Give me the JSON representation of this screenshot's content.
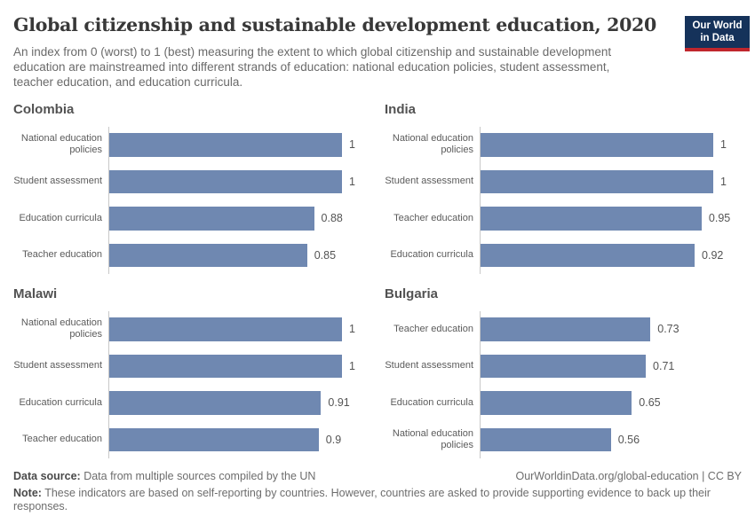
{
  "header": {
    "title": "Global citizenship and sustainable development education, 2020",
    "subtitle": "An index from 0 (worst) to 1 (best) measuring the extent to which global citizenship and sustainable development education are mainstreamed into different strands of education: national education policies, student assessment, teacher education, and education curricula.",
    "logo": {
      "line1": "Our World",
      "line2": "in Data"
    }
  },
  "chart_data": {
    "type": "bar",
    "orientation": "horizontal",
    "xlim": [
      0,
      1
    ],
    "grid": false,
    "value_labels_shown": true,
    "panels": [
      {
        "country": "Colombia",
        "categories": [
          "National education policies",
          "Student assessment",
          "Education curricula",
          "Teacher education"
        ],
        "values": [
          1,
          1,
          0.88,
          0.85
        ],
        "value_labels": [
          "1",
          "1",
          "0.88",
          "0.85"
        ]
      },
      {
        "country": "India",
        "categories": [
          "National education policies",
          "Student assessment",
          "Teacher education",
          "Education curricula"
        ],
        "values": [
          1,
          1,
          0.95,
          0.92
        ],
        "value_labels": [
          "1",
          "1",
          "0.95",
          "0.92"
        ]
      },
      {
        "country": "Malawi",
        "categories": [
          "National education policies",
          "Student assessment",
          "Education curricula",
          "Teacher education"
        ],
        "values": [
          1,
          1,
          0.91,
          0.9
        ],
        "value_labels": [
          "1",
          "1",
          "0.91",
          "0.9"
        ]
      },
      {
        "country": "Bulgaria",
        "categories": [
          "Teacher education",
          "Student assessment",
          "Education curricula",
          "National education policies"
        ],
        "values": [
          0.73,
          0.71,
          0.65,
          0.56
        ],
        "value_labels": [
          "0.73",
          "0.71",
          "0.65",
          "0.56"
        ]
      }
    ]
  },
  "footer": {
    "data_source_label": "Data source:",
    "data_source_text": " Data from multiple sources compiled by the UN",
    "link_text": "OurWorldinData.org/global-education | CC BY",
    "note_label": "Note:",
    "note_text": " These indicators are based on self-reporting by countries. However, countries are asked to provide supporting evidence to back up their responses."
  },
  "colors": {
    "bar": "#6f88b1",
    "axis_line": "#c8c8c8",
    "logo_background": "#15325a",
    "logo_accent": "#c0262d",
    "title_text": "#383838",
    "body_text": "#6a6a6a"
  }
}
